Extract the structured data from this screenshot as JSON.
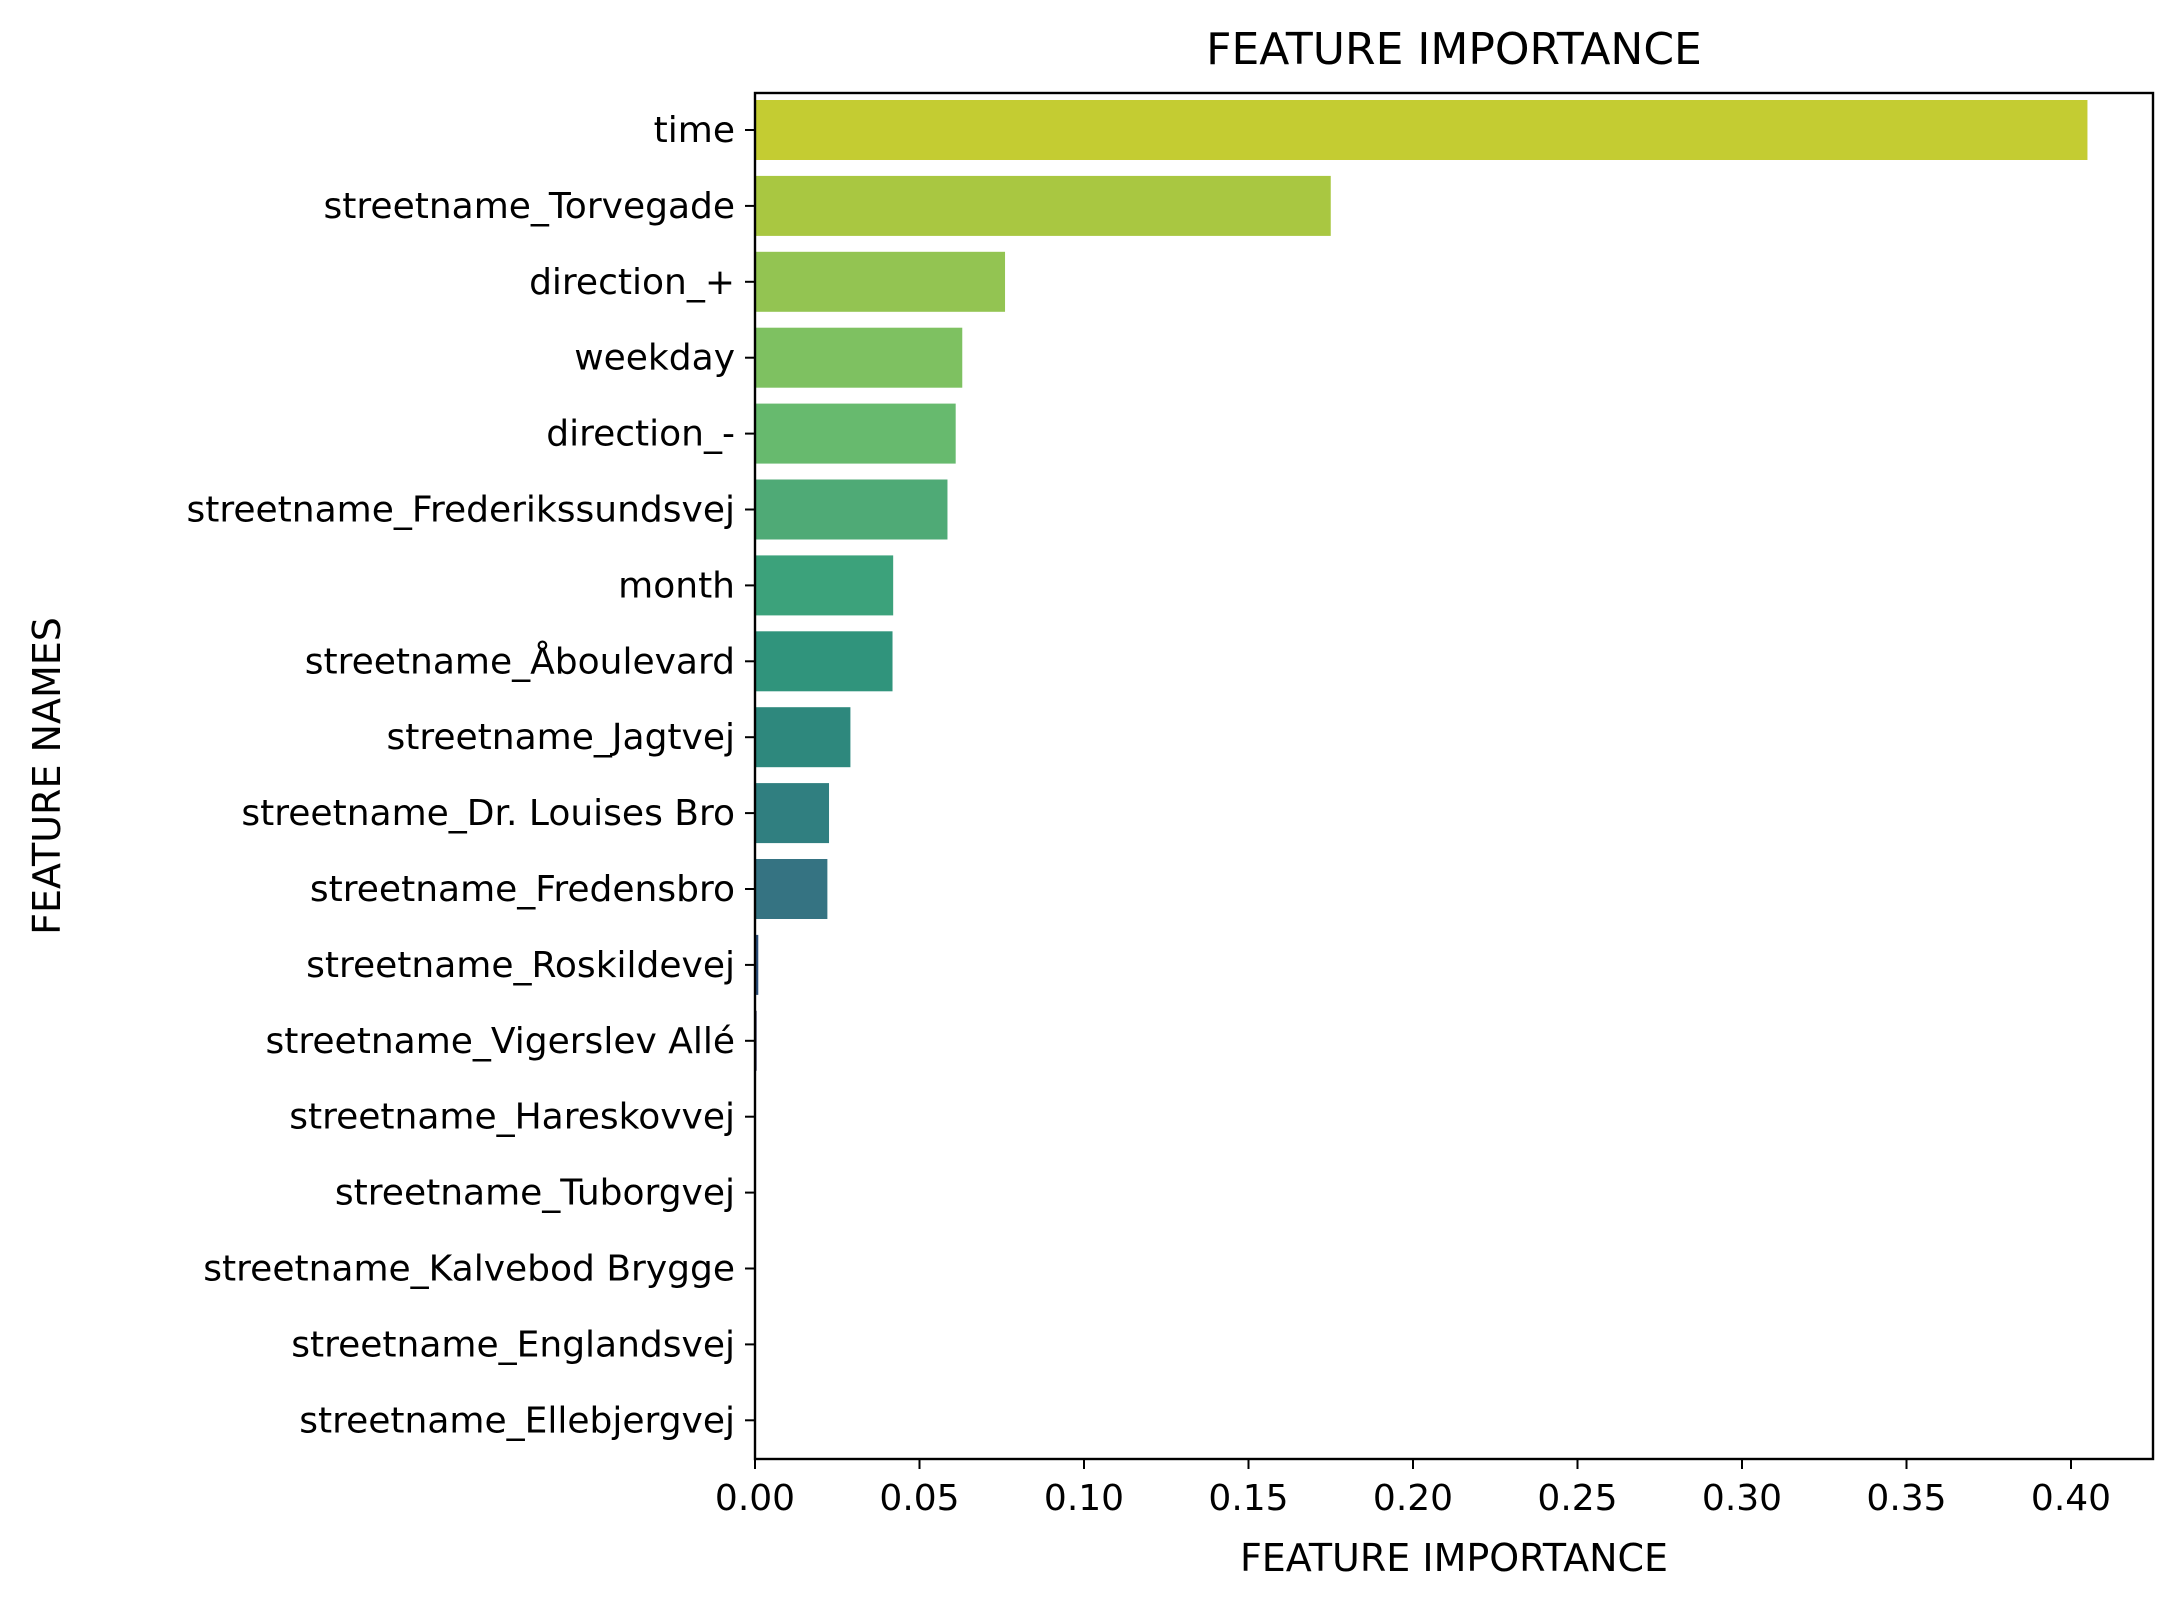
{
  "chart_data": {
    "type": "bar",
    "orientation": "horizontal",
    "title": "FEATURE IMPORTANCE",
    "xlabel": "FEATURE IMPORTANCE",
    "ylabel": "FEATURE NAMES",
    "xlim": [
      0,
      0.425
    ],
    "xticks": [
      "0.00",
      "0.05",
      "0.10",
      "0.15",
      "0.20",
      "0.25",
      "0.30",
      "0.35",
      "0.40"
    ],
    "grid": false,
    "legend": "none",
    "categories": [
      "time",
      "streetname_Torvegade",
      "direction_+",
      "weekday",
      "direction_-",
      "streetname_Frederikssundsvej",
      "month",
      "streetname_Åboulevard",
      "streetname_Jagtvej",
      "streetname_Dr. Louises Bro",
      "streetname_Fredensbro",
      "streetname_Roskildevej",
      "streetname_Vigerslev Allé",
      "streetname_Hareskovvej",
      "streetname_Tuborgvej",
      "streetname_Kalvebod Brygge",
      "streetname_Englandsvej",
      "streetname_Ellebjergvej"
    ],
    "values": [
      0.405,
      0.175,
      0.076,
      0.063,
      0.061,
      0.0585,
      0.042,
      0.0418,
      0.029,
      0.0225,
      0.022,
      0.001,
      0.0005,
      0.0,
      0.0,
      0.0,
      0.0,
      0.0
    ],
    "colors": [
      "#c4cc32",
      "#a9c741",
      "#93c452",
      "#7ec161",
      "#67ba6e",
      "#4faa76",
      "#3ca27b",
      "#30947c",
      "#2e887d",
      "#307f80",
      "#357382",
      "#2a4e7a",
      "#30305e",
      "#ffffff",
      "#ffffff",
      "#ffffff",
      "#ffffff",
      "#ffffff"
    ]
  }
}
